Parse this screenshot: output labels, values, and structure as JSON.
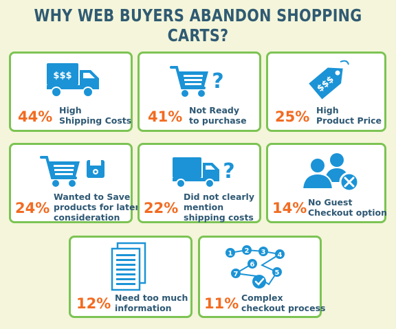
{
  "title": "WHY WEB BUYERS ABANDON SHOPPING CARTS?",
  "colors": {
    "background": "#f4f5da",
    "border": "#7cc353",
    "icon": "#1b93d6",
    "percent": "#f26b21",
    "text": "#2e5873"
  },
  "reasons": [
    {
      "percent": "44%",
      "label": [
        "High",
        "Shipping Costs"
      ],
      "icon": "truck-dollar-icon",
      "value": 44
    },
    {
      "percent": "41%",
      "label": [
        "Not Ready",
        "to purchase"
      ],
      "icon": "cart-question-icon",
      "value": 41
    },
    {
      "percent": "25%",
      "label": [
        "High",
        "Product Price"
      ],
      "icon": "price-tag-icon",
      "value": 25
    },
    {
      "percent": "24%",
      "label": [
        "Wanted to Save",
        "products for later",
        "consideration"
      ],
      "icon": "cart-save-icon",
      "value": 24
    },
    {
      "percent": "22%",
      "label": [
        "Did not clearly",
        "mention",
        "shipping costs"
      ],
      "icon": "truck-question-icon",
      "value": 22
    },
    {
      "percent": "14%",
      "label": [
        "No Guest",
        "Checkout option"
      ],
      "icon": "users-cancel-icon",
      "value": 14
    },
    {
      "percent": "12%",
      "label": [
        "Need too much",
        "information"
      ],
      "icon": "documents-icon",
      "value": 12
    },
    {
      "percent": "11%",
      "label": [
        "Complex",
        "checkout process"
      ],
      "icon": "process-steps-icon",
      "value": 11
    }
  ]
}
